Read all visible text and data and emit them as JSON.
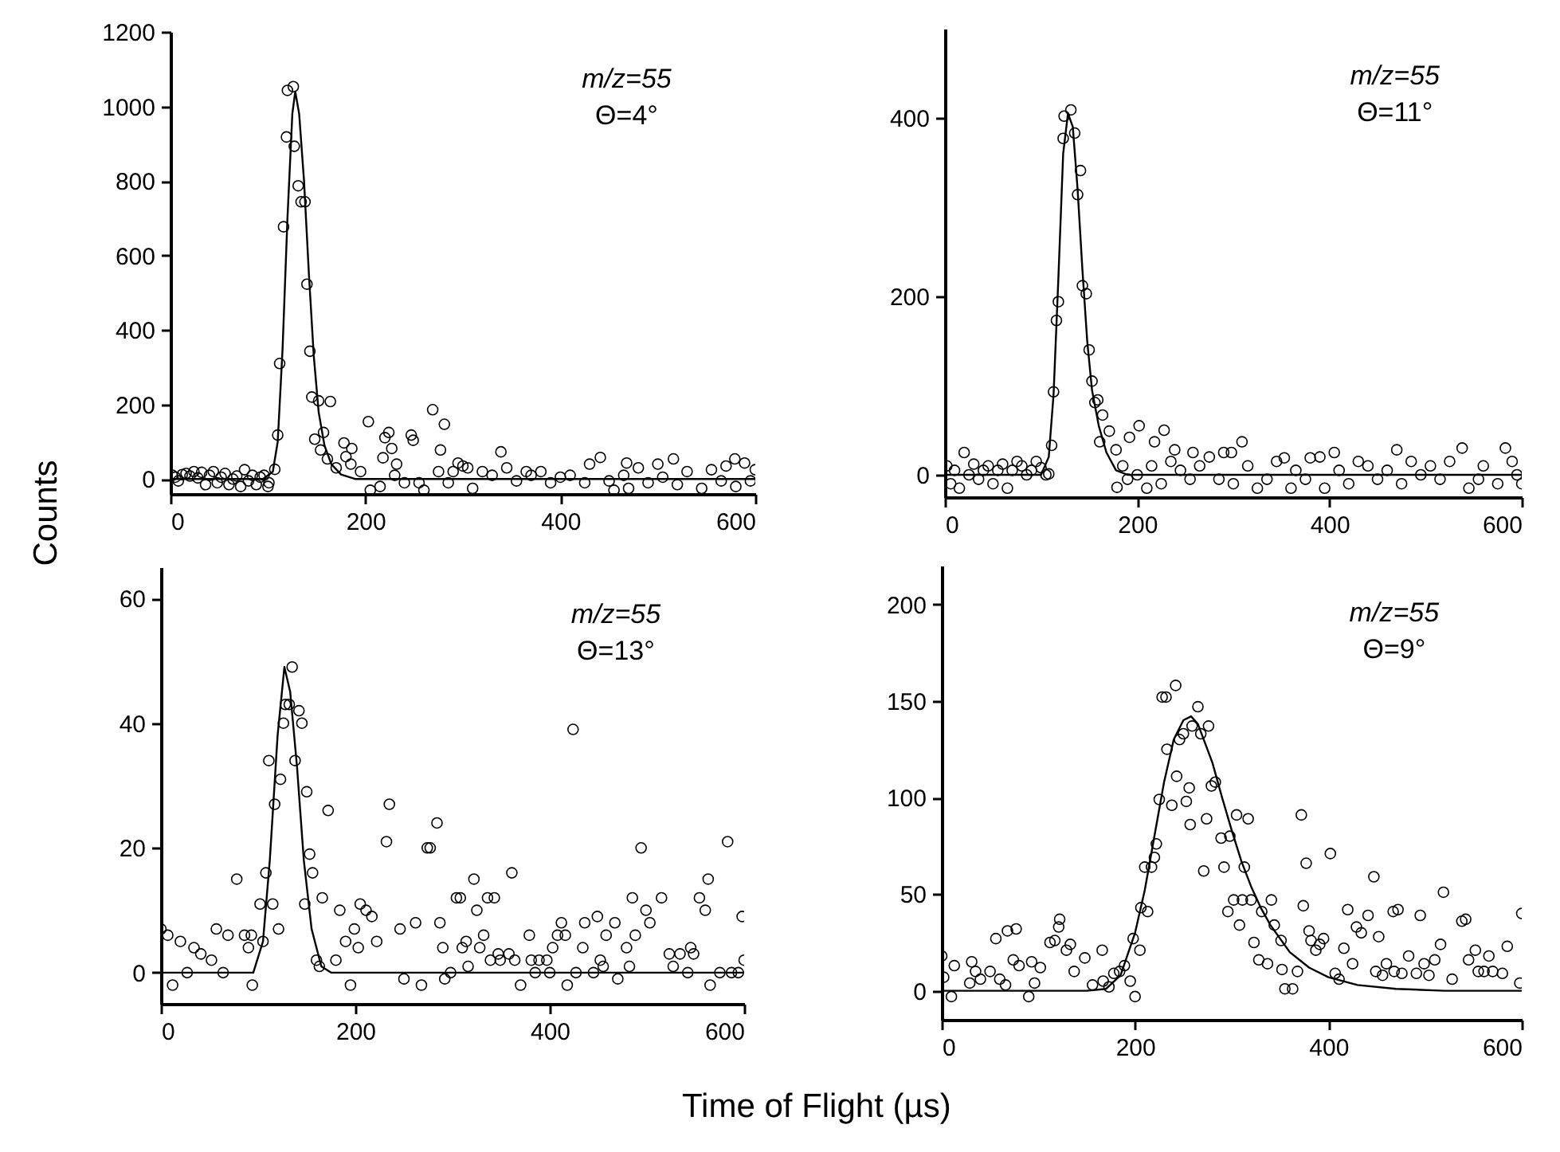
{
  "chart_data": [
    {
      "type": "scatter",
      "ylabel": "Counts",
      "annotations": [
        "m/z=55",
        "Θ=4°"
      ],
      "xlim": [
        0,
        600
      ],
      "xticks": [
        0,
        200,
        400,
        600
      ],
      "ylim": [
        -40,
        1200
      ],
      "yticks": [
        0,
        200,
        400,
        600,
        800,
        1000,
        1200
      ],
      "grid": false,
      "line_style": "solid",
      "series": [
        {
          "marker": "circle",
          "color": "#000000",
          "x": [
            2,
            5,
            8,
            12,
            16,
            20,
            24,
            28,
            32,
            36,
            40,
            44,
            48,
            52,
            56,
            60,
            64,
            68,
            72,
            76,
            80,
            84,
            88,
            92,
            96,
            100,
            101,
            107,
            110,
            112,
            116,
            119,
            120,
            126,
            127,
            131,
            134,
            138,
            140,
            143,
            145,
            148,
            152,
            154,
            157,
            161,
            164,
            170,
            178,
            180,
            185,
            186,
            195,
            203,
            205,
            215,
            218,
            220,
            224,
            227,
            230,
            232,
            240,
            247,
            249,
            255,
            260,
            269,
            275,
            277,
            281,
            285,
            290,
            295,
            300,
            305,
            310,
            320,
            330,
            339,
            345,
            355,
            365,
            370,
            380,
            390,
            400,
            410,
            425,
            430,
            441,
            450,
            455,
            465,
            468,
            470,
            480,
            490,
            500,
            505,
            516,
            520,
            530,
            545,
            555,
            565,
            570,
            579,
            580,
            589,
            595,
            600
          ],
          "values": [
            10,
            5,
            -5,
            12,
            15,
            8,
            20,
            3,
            18,
            -15,
            10,
            20,
            -10,
            5,
            15,
            -15,
            0,
            8,
            -20,
            25,
            -5,
            10,
            -15,
            5,
            10,
            -20,
            -10,
            26,
            118,
            310,
            677,
            918,
            1043,
            1053,
            893,
            787,
            744,
            744,
            523,
            343,
            220,
            107,
            210,
            78,
            125,
            54,
            208,
            30,
            97,
            60,
            40,
            82,
            20,
            154,
            -30,
            -20,
            57,
            111,
            125,
            82,
            10,
            40,
            -10,
            118,
            104,
            -10,
            -30,
            186,
            20,
            78,
            147,
            -10,
            20,
            43,
            35,
            30,
            -25,
            20,
            10,
            73,
            30,
            -5,
            20,
            10,
            20,
            -10,
            5,
            10,
            -10,
            40,
            58,
            -5,
            -30,
            10,
            43,
            -25,
            30,
            -10,
            40,
            5,
            54,
            -15,
            20,
            -25,
            25,
            -5,
            35,
            54,
            -20,
            43,
            -5,
            25
          ]
        },
        {
          "type": "line",
          "marker": "none",
          "color": "#000000",
          "x": [
            0,
            95,
            105,
            110,
            115,
            120,
            125,
            128,
            132,
            137,
            142,
            147,
            152,
            158,
            165,
            175,
            190,
            600
          ],
          "values": [
            0,
            0,
            20,
            100,
            350,
            700,
            980,
            1040,
            980,
            800,
            550,
            330,
            180,
            90,
            40,
            12,
            0,
            0
          ]
        }
      ]
    },
    {
      "type": "scatter",
      "annotations": [
        "m/z=55",
        "Θ=11°"
      ],
      "xlim": [
        0,
        600
      ],
      "xticks": [
        0,
        200,
        400,
        600
      ],
      "ylim": [
        -25,
        500
      ],
      "yticks": [
        0,
        200,
        400
      ],
      "grid": false,
      "line_style": "solid",
      "series": [
        {
          "marker": "circle",
          "color": "#000000",
          "x": [
            2,
            6,
            10,
            15,
            20,
            25,
            30,
            35,
            40,
            45,
            50,
            55,
            60,
            65,
            70,
            75,
            80,
            85,
            90,
            95,
            100,
            105,
            108,
            111,
            113,
            116,
            118,
            123,
            124,
            131,
            135,
            138,
            141,
            143,
            147,
            150,
            153,
            156,
            159,
            161,
            164,
            171,
            178,
            179,
            185,
            190,
            192,
            200,
            202,
            210,
            215,
            218,
            225,
            228,
            235,
            239,
            245,
            255,
            258,
            265,
            275,
            285,
            290,
            298,
            300,
            309,
            315,
            325,
            335,
            345,
            353,
            360,
            365,
            375,
            380,
            390,
            395,
            405,
            410,
            420,
            430,
            440,
            450,
            460,
            470,
            475,
            485,
            495,
            505,
            515,
            525,
            538,
            545,
            555,
            560,
            575,
            583,
            590,
            595,
            600
          ],
          "values": [
            10,
            -10,
            5,
            -15,
            25,
            0,
            12,
            -5,
            5,
            10,
            -10,
            5,
            12,
            -15,
            5,
            15,
            10,
            0,
            5,
            15,
            8,
            0,
            1,
            33,
            93,
            173,
            194,
            377,
            402,
            409,
            383,
            314,
            341,
            212,
            203,
            140,
            105,
            81,
            84,
            37,
            67,
            49,
            28,
            -14,
            10,
            -5,
            42,
            0,
            55,
            -15,
            10,
            37,
            -10,
            50,
            15,
            28,
            5,
            -5,
            25,
            10,
            20,
            -5,
            25,
            25,
            -10,
            37,
            10,
            -15,
            -5,
            15,
            19,
            -15,
            5,
            -5,
            19,
            20,
            -15,
            25,
            5,
            -10,
            15,
            10,
            -5,
            5,
            28,
            -10,
            15,
            0,
            10,
            -5,
            15,
            30,
            -15,
            -5,
            10,
            -10,
            30,
            15,
            0,
            -10
          ]
        },
        {
          "type": "line",
          "marker": "none",
          "color": "#000000",
          "x": [
            0,
            100,
            108,
            113,
            118,
            123,
            128,
            133,
            138,
            143,
            148,
            153,
            160,
            168,
            178,
            190,
            600
          ],
          "values": [
            0,
            0,
            20,
            90,
            220,
            360,
            405,
            390,
            320,
            230,
            150,
            95,
            55,
            25,
            5,
            0,
            0
          ]
        }
      ]
    },
    {
      "type": "scatter",
      "xlabel": "Time of Flight (µs)",
      "annotations": [
        "m/z=55",
        "Θ=13°"
      ],
      "xlim": [
        0,
        600
      ],
      "xticks": [
        0,
        200,
        400,
        600
      ],
      "ylim": [
        -5,
        65
      ],
      "yticks": [
        0,
        20,
        40,
        60
      ],
      "grid": false,
      "line_style": "solid",
      "series": [
        {
          "marker": "circle",
          "color": "#000000",
          "x": [
            0,
            7,
            12,
            20,
            27,
            34,
            41,
            52,
            57,
            64,
            69,
            78,
            86,
            90,
            93,
            94,
            102,
            105,
            108,
            111,
            115,
            117,
            121,
            123,
            126,
            128,
            132,
            135,
            138,
            142,
            145,
            148,
            150,
            153,
            156,
            160,
            163,
            166,
            172,
            180,
            184,
            190,
            195,
            199,
            203,
            205,
            211,
            217,
            222,
            232,
            235,
            246,
            250,
            262,
            268,
            274,
            277,
            284,
            287,
            290,
            292,
            298,
            304,
            308,
            310,
            314,
            316,
            322,
            325,
            328,
            332,
            336,
            339,
            343,
            347,
            349,
            358,
            361,
            364,
            370,
            379,
            381,
            385,
            389,
            397,
            400,
            403,
            408,
            412,
            416,
            418,
            424,
            427,
            434,
            436,
            445,
            449,
            452,
            455,
            458,
            467,
            470,
            479,
            482,
            485,
            488,
            494,
            499,
            503,
            515,
            523,
            527,
            534,
            542,
            545,
            548,
            554,
            560,
            563,
            565,
            575,
            583,
            587,
            594,
            598,
            600
          ],
          "values": [
            7,
            6,
            -2,
            5,
            0,
            4,
            3,
            2,
            7,
            0,
            6,
            15,
            6,
            4,
            6,
            -2,
            11,
            5,
            16,
            34,
            11,
            27,
            7,
            31,
            40,
            43,
            43,
            49,
            34,
            42,
            40,
            11,
            29,
            19,
            16,
            2,
            1,
            12,
            26,
            2,
            10,
            5,
            -2,
            7,
            4,
            11,
            10,
            9,
            5,
            21,
            27,
            7,
            -1,
            8,
            -2,
            20,
            20,
            24,
            8,
            4,
            -1,
            0,
            12,
            12,
            4,
            5,
            1,
            15,
            10,
            4,
            6,
            12,
            2,
            12,
            3,
            2,
            3,
            16,
            2,
            -2,
            6,
            2,
            0,
            2,
            2,
            0,
            4,
            6,
            8,
            6,
            -2,
            39,
            0,
            4,
            8,
            0,
            9,
            2,
            1,
            6,
            8,
            -1,
            4,
            1,
            12,
            6,
            20,
            10,
            8,
            12,
            3,
            1,
            3,
            0,
            4,
            3,
            12,
            10,
            15,
            -2,
            0,
            21,
            0,
            0,
            9,
            2
          ]
        },
        {
          "type": "line",
          "marker": "none",
          "color": "#000000",
          "x": [
            0,
            95,
            105,
            112,
            120,
            127,
            133,
            140,
            147,
            155,
            165,
            175,
            600
          ],
          "values": [
            0,
            0,
            5,
            18,
            38,
            49,
            45,
            33,
            18,
            7,
            1,
            0,
            0
          ]
        }
      ]
    },
    {
      "type": "scatter",
      "annotations": [
        "m/z=55",
        "Θ=9°"
      ],
      "xlim": [
        0,
        600
      ],
      "xticks": [
        0,
        200,
        400,
        600
      ],
      "ylim": [
        -15,
        220
      ],
      "yticks": [
        0,
        50,
        100,
        150,
        200
      ],
      "grid": false,
      "line_style": "solid",
      "series": [
        {
          "marker": "circle",
          "color": "#000000",
          "x": [
            0,
            2,
            10,
            13,
            29,
            31,
            35,
            40,
            50,
            56,
            60,
            66,
            68,
            74,
            77,
            80,
            90,
            93,
            96,
            102,
            112,
            117,
            121,
            122,
            129,
            133,
            137,
            148,
            156,
            166,
            167,
            173,
            178,
            184,
            189,
            195,
            198,
            200,
            205,
            206,
            210,
            213,
            217,
            220,
            222,
            225,
            228,
            232,
            233,
            238,
            242,
            243,
            246,
            250,
            253,
            256,
            257,
            259,
            265,
            268,
            271,
            274,
            276,
            279,
            283,
            289,
            292,
            296,
            298,
            302,
            305,
            308,
            311,
            313,
            317,
            320,
            323,
            328,
            331,
            337,
            341,
            344,
            351,
            352,
            355,
            363,
            368,
            372,
            374,
            377,
            380,
            382,
            387,
            391,
            395,
            402,
            407,
            411,
            416,
            420,
            425,
            429,
            434,
            441,
            447,
            449,
            452,
            456,
            460,
            467,
            468,
            472,
            476,
            483,
            491,
            495,
            499,
            504,
            510,
            516,
            519,
            528,
            538,
            542,
            545,
            552,
            555,
            561,
            566,
            570,
            580,
            585,
            598,
            600
          ],
          "values": [
            18,
            7,
            -3,
            13,
            4,
            15,
            10,
            6,
            10,
            27,
            6,
            3,
            31,
            16,
            32,
            13,
            -3,
            15,
            4,
            12,
            25,
            26,
            33,
            37,
            21,
            24,
            10,
            17,
            3,
            21,
            5,
            2,
            9,
            10,
            13,
            5,
            27,
            -3,
            21,
            43,
            64,
            41,
            64,
            69,
            76,
            99,
            152,
            152,
            125,
            96,
            158,
            111,
            130,
            133,
            98,
            105,
            86,
            137,
            147,
            133,
            62,
            89,
            137,
            106,
            108,
            79,
            64,
            41,
            80,
            47,
            91,
            34,
            47,
            64,
            89,
            47,
            25,
            16,
            41,
            14,
            47,
            34,
            26,
            11,
            1,
            1,
            10,
            91,
            44,
            66,
            31,
            26,
            21,
            24,
            27,
            71,
            9,
            6,
            22,
            42,
            14,
            33,
            30,
            39,
            59,
            10,
            28,
            8,
            14,
            41,
            10,
            42,
            9,
            18,
            9,
            39,
            14,
            8,
            16,
            24,
            51,
            6,
            36,
            37,
            16,
            21,
            10,
            10,
            18,
            10,
            9,
            23,
            4,
            40
          ]
        },
        {
          "type": "line",
          "marker": "none",
          "color": "#000000",
          "x": [
            0,
            150,
            170,
            185,
            200,
            210,
            220,
            230,
            240,
            250,
            258,
            265,
            280,
            290,
            300,
            310,
            320,
            330,
            340,
            360,
            380,
            400,
            430,
            470,
            520,
            600
          ],
          "values": [
            0,
            0,
            1,
            8,
            30,
            52,
            80,
            108,
            130,
            140,
            142,
            138,
            118,
            100,
            83,
            67,
            54,
            43,
            34,
            20,
            12,
            7,
            3,
            1,
            0,
            0
          ]
        }
      ]
    }
  ]
}
